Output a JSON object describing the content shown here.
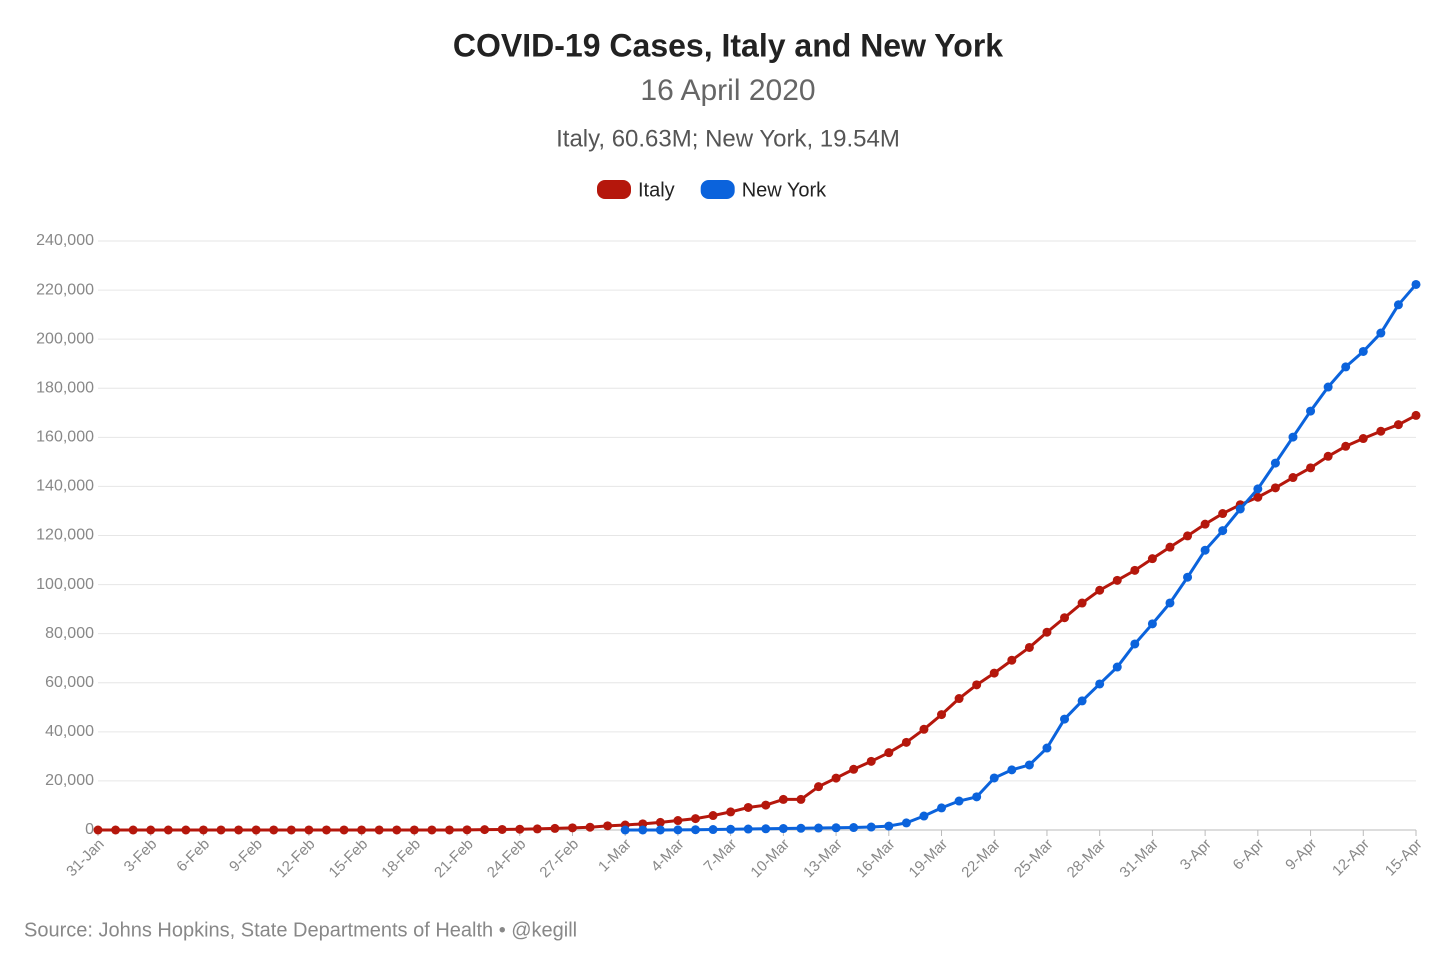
{
  "chart_data": {
    "type": "line",
    "title": "COVID-19 Cases, Italy and New York",
    "subtitle": "16 April 2020",
    "note": "Italy, 60.63M; New York, 19.54M",
    "source": "Source: Johns Hopkins, State Departments of Health • @kegill",
    "categories": [
      "31-Jan",
      null,
      null,
      "3-Feb",
      null,
      null,
      "6-Feb",
      null,
      null,
      "9-Feb",
      null,
      null,
      "12-Feb",
      null,
      null,
      "15-Feb",
      null,
      null,
      "18-Feb",
      null,
      null,
      "21-Feb",
      null,
      null,
      "24-Feb",
      null,
      null,
      "27-Feb",
      null,
      null,
      "1-Mar",
      null,
      null,
      "4-Mar",
      null,
      null,
      "7-Mar",
      null,
      null,
      "10-Mar",
      null,
      null,
      "13-Mar",
      null,
      null,
      "16-Mar",
      null,
      null,
      "19-Mar",
      null,
      null,
      "22-Mar",
      null,
      null,
      "25-Mar",
      null,
      null,
      "28-Mar",
      null,
      null,
      "31-Mar",
      null,
      null,
      "3-Apr",
      null,
      null,
      "6-Apr",
      null,
      null,
      "9-Apr",
      null,
      null,
      "12-Apr",
      null,
      null,
      "15-Apr"
    ],
    "series": [
      {
        "name": "Italy",
        "color": "#b5170c",
        "values": [
          2,
          2,
          2,
          2,
          2,
          2,
          3,
          3,
          3,
          3,
          3,
          3,
          3,
          3,
          3,
          3,
          3,
          3,
          3,
          3,
          20,
          62,
          155,
          229,
          322,
          453,
          655,
          888,
          1128,
          1694,
          2036,
          2502,
          3089,
          3858,
          4636,
          5883,
          7375,
          9172,
          10149,
          12462,
          12462,
          17660,
          21157,
          24747,
          27980,
          31506,
          35713,
          41035,
          47021,
          53578,
          59138,
          63927,
          69176,
          74386,
          80589,
          86498,
          92472,
          97689,
          101739,
          105792,
          110574,
          115242,
          119827,
          124632,
          128948,
          132547,
          135586,
          139422,
          143626,
          147577,
          152271,
          156363,
          159516,
          162488,
          165155,
          168941
        ]
      },
      {
        "name": "New York",
        "color": "#0b63dc",
        "values": [
          null,
          null,
          null,
          null,
          null,
          null,
          null,
          null,
          null,
          null,
          null,
          null,
          null,
          null,
          null,
          null,
          null,
          null,
          null,
          null,
          null,
          null,
          null,
          null,
          null,
          null,
          null,
          null,
          null,
          null,
          1,
          10,
          20,
          50,
          100,
          200,
          300,
          400,
          500,
          600,
          700,
          800,
          900,
          1000,
          1200,
          1600,
          2900,
          5700,
          9000,
          11800,
          13500,
          21200,
          24500,
          26500,
          33400,
          45200,
          52600,
          59500,
          66400,
          75800,
          84000,
          92500,
          103000,
          114000,
          122000,
          130800,
          139000,
          149500,
          160100,
          170700,
          180500,
          188700,
          195000,
          202500,
          214000,
          222300
        ]
      }
    ],
    "ylim": [
      0,
      240000
    ],
    "yticks": [
      0,
      {
        "value": 20000,
        "label": "20,000"
      },
      {
        "value": 40000,
        "label": "40,000"
      },
      {
        "value": 60000,
        "label": "60,000"
      },
      {
        "value": 80000,
        "label": "80,000"
      },
      {
        "value": 100000,
        "label": "100,000"
      },
      {
        "value": 120000,
        "label": "120,000"
      },
      {
        "value": 140000,
        "label": "140,000"
      },
      {
        "value": 160000,
        "label": "160,000"
      },
      {
        "value": 180000,
        "label": "180,000"
      },
      {
        "value": 200000,
        "label": "200,000"
      },
      {
        "value": 220000,
        "label": "220,000"
      },
      {
        "value": 240000,
        "label": "240,000"
      }
    ],
    "grid": true,
    "legend": "top"
  }
}
